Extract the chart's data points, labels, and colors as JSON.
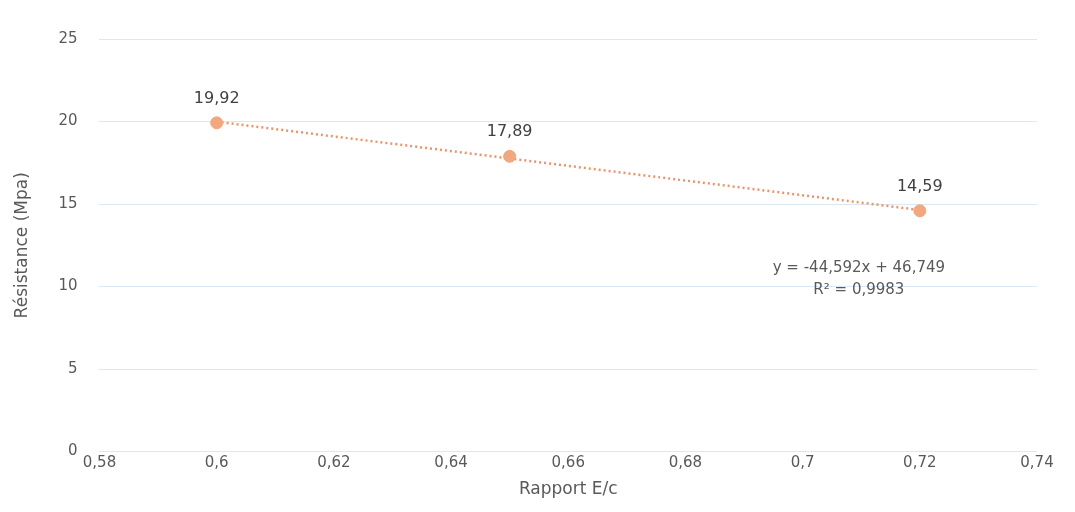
{
  "chart_data": {
    "type": "scatter",
    "xlabel": "Rapport E/c",
    "ylabel": "Résistance (Mpa)",
    "series": [
      {
        "type": "scatter",
        "color": "#f2a77e",
        "x": [
          0.6,
          0.65,
          0.72
        ],
        "values": [
          19.92,
          17.89,
          14.59
        ],
        "value_labels": [
          "19,92",
          "17,89",
          "14,59"
        ],
        "marker": "circle"
      },
      {
        "type": "line",
        "color": "#e8956a",
        "x": [
          0.6,
          0.72
        ],
        "values": [
          19.99,
          14.64
        ],
        "line_style": "dotted",
        "marker": "none"
      }
    ],
    "xlim": [
      0.58,
      0.74
    ],
    "xticks": [
      {
        "value": 0.58,
        "label": "0,58"
      },
      {
        "value": 0.6,
        "label": "0,6"
      },
      {
        "value": 0.62,
        "label": "0,62"
      },
      {
        "value": 0.64,
        "label": "0,64"
      },
      {
        "value": 0.66,
        "label": "0,66"
      },
      {
        "value": 0.68,
        "label": "0,68"
      },
      {
        "value": 0.7,
        "label": "0,7"
      },
      {
        "value": 0.72,
        "label": "0,72"
      },
      {
        "value": 0.74,
        "label": "0,74"
      }
    ],
    "ylim": [
      0,
      25
    ],
    "yticks": [
      0,
      5,
      10,
      15,
      20,
      25
    ],
    "grid": "y",
    "legend": false,
    "annotations": [
      "y = -44,592x + 46,749",
      "R² = 0,9983"
    ]
  }
}
